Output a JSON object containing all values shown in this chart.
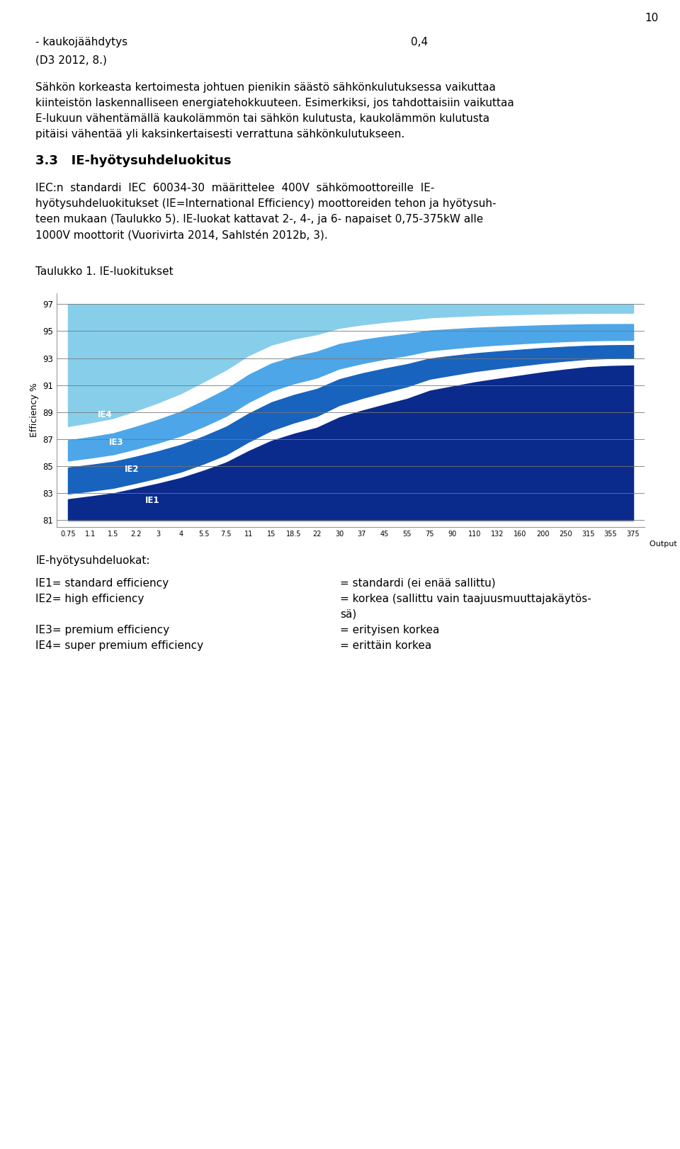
{
  "page_number": "10",
  "bg_color": "#FFFFFF",
  "text_color": "#000000",
  "chart_ylabel": "Efficiency %",
  "chart_yticks": [
    81,
    83,
    85,
    87,
    89,
    91,
    93,
    95,
    97
  ],
  "chart_xtick_labels": [
    "0.75",
    "1.1",
    "1.5",
    "2.2",
    "3",
    "4",
    "5.5",
    "7.5",
    "11",
    "15",
    "18.5",
    "22",
    "30",
    "37",
    "45",
    "55",
    "75",
    "90",
    "110",
    "132",
    "160",
    "200",
    "250",
    "315",
    "355",
    "375"
  ],
  "chart_xlabel": "Output kW",
  "ie4_color": "#87CEEB",
  "ie3_color": "#4DA6E8",
  "ie2_color": "#1863BD",
  "ie1_color": "#0A2B8C",
  "body_fs": 11.0,
  "heading_fs": 13.0,
  "small_fs": 9.0
}
